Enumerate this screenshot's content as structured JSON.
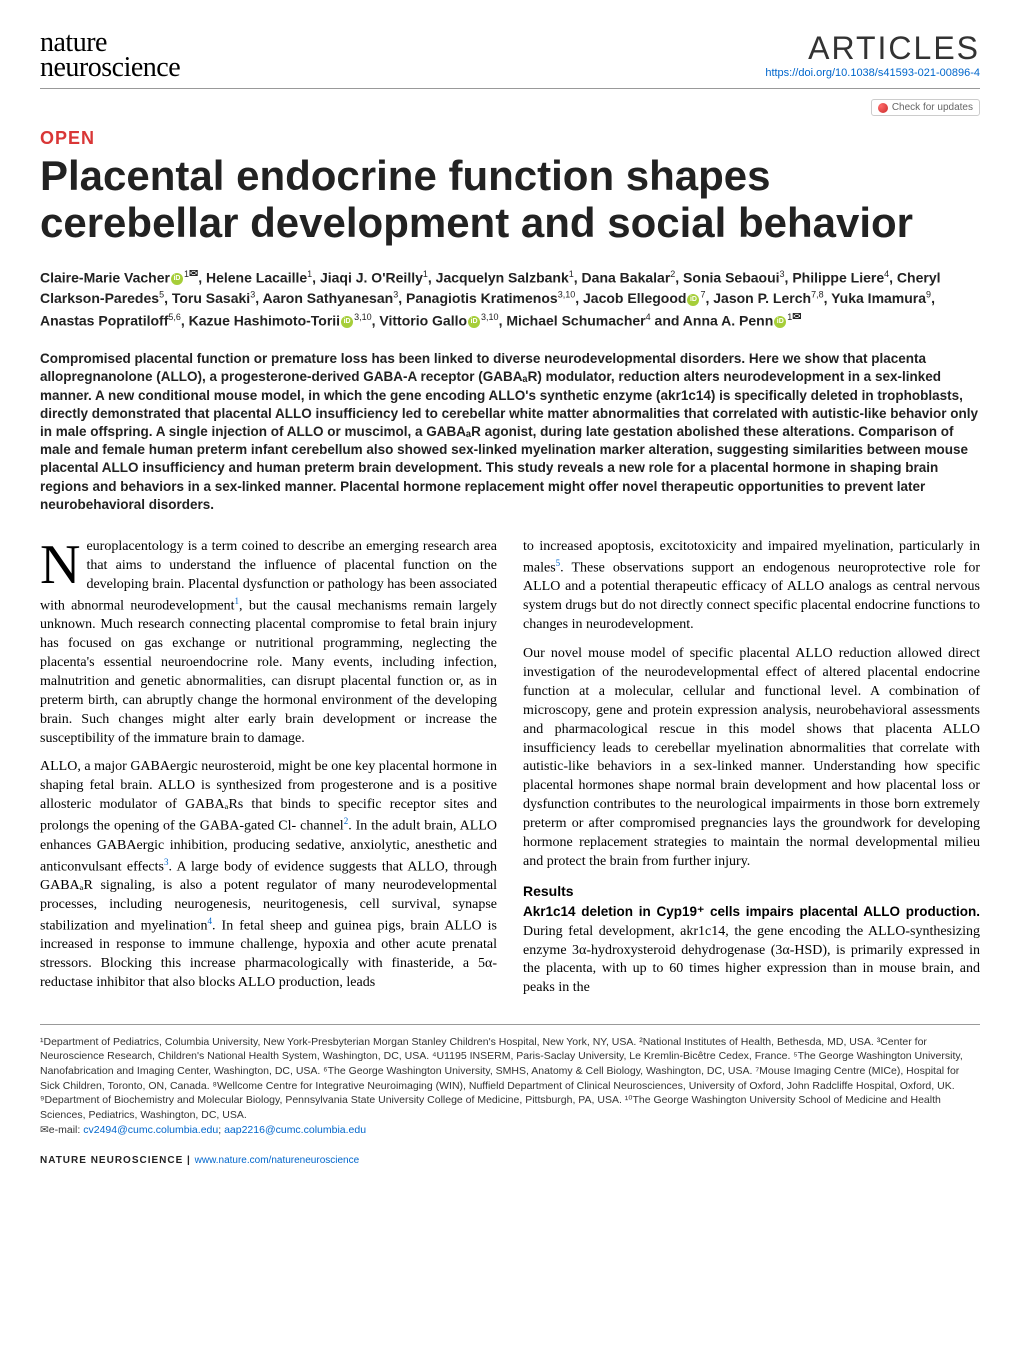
{
  "header": {
    "logo_line1": "nature",
    "logo_line2": "neuroscience",
    "articles_label": "ARTICLES",
    "doi": "https://doi.org/10.1038/s41593-021-00896-4",
    "check_updates": "Check for updates"
  },
  "open_label": "OPEN",
  "title": "Placental endocrine function shapes cerebellar development and social behavior",
  "authors_html": "Claire-Marie Vacher<span class='orcid'></span><sup>1</sup><span class='envelope'>✉</span>, Helene Lacaille<sup>1</sup>, Jiaqi J. O'Reilly<sup>1</sup>, Jacquelyn Salzbank<sup>1</sup>, Dana Bakalar<sup>2</sup>, Sonia Sebaoui<sup>3</sup>, Philippe Liere<sup>4</sup>, Cheryl Clarkson-Paredes<sup>5</sup>, Toru Sasaki<sup>3</sup>, Aaron Sathyanesan<sup>3</sup>, Panagiotis Kratimenos<sup>3,10</sup>, Jacob Ellegood<span class='orcid'></span><sup>7</sup>, Jason P. Lerch<sup>7,8</sup>, Yuka Imamura<sup>9</sup>, Anastas Popratiloff<sup>5,6</sup>, Kazue Hashimoto-Torii<span class='orcid'></span><sup>3,10</sup>, Vittorio Gallo<span class='orcid'></span><sup>3,10</sup>, Michael Schumacher<sup>4</sup> and Anna A. Penn<span class='orcid'></span><sup>1</sup><span class='envelope'>✉</span>",
  "abstract": "Compromised placental function or premature loss has been linked to diverse neurodevelopmental disorders. Here we show that placenta allopregnanolone (ALLO), a progesterone-derived GABA-A receptor (GABAₐR) modulator, reduction alters neurodevelopment in a sex-linked manner. A new conditional mouse model, in which the gene encoding ALLO's synthetic enzyme (akr1c14) is specifically deleted in trophoblasts, directly demonstrated that placental ALLO insufficiency led to cerebellar white matter abnormalities that correlated with autistic-like behavior only in male offspring. A single injection of ALLO or muscimol, a GABAₐR agonist, during late gestation abolished these alterations. Comparison of male and female human preterm infant cerebellum also showed sex-linked myelination marker alteration, suggesting similarities between mouse placental ALLO insufficiency and human preterm brain development. This study reveals a new role for a placental hormone in shaping brain regions and behaviors in a sex-linked manner. Placental hormone replacement might offer novel therapeutic opportunities to prevent later neurobehavioral disorders.",
  "body": {
    "p1_dropcap": "N",
    "p1": "europlacentology is a term coined to describe an emerging research area that aims to understand the influence of placental function on the developing brain. Placental dysfunction or pathology has been associated with abnormal neurodevelopment",
    "p1_ref": "1",
    "p1_tail": ", but the causal mechanisms remain largely unknown. Much research connecting placental compromise to fetal brain injury has focused on gas exchange or nutritional programming, neglecting the placenta's essential neuroendocrine role. Many events, including infection, malnutrition and genetic abnormalities, can disrupt placental function or, as in preterm birth, can abruptly change the hormonal environment of the developing brain. Such changes might alter early brain development or increase the susceptibility of the immature brain to damage.",
    "p2_a": "ALLO, a major GABAergic neurosteroid, might be one key placental hormone in shaping fetal brain. ALLO is synthesized from progesterone and is a positive allosteric modulator of GABAₐRs that binds to specific receptor sites and prolongs the opening of the GABA-gated Cl- channel",
    "p2_ref2": "2",
    "p2_b": ". In the adult brain, ALLO enhances GABAergic inhibition, producing sedative, anxiolytic, anesthetic and anticonvulsant effects",
    "p2_ref3": "3",
    "p2_c": ". A large body of evidence suggests that ALLO, through GABAₐR signaling, is also a potent regulator of many neurodevelopmental processes, including neurogenesis, neuritogenesis, cell survival, synapse stabilization and myelination",
    "p2_ref4": "4",
    "p2_d": ". In fetal sheep and guinea pigs, brain ALLO is increased in response to immune challenge, hypoxia and other acute prenatal stressors. Blocking this increase pharmacologically with finasteride, a 5α-reductase inhibitor that also blocks ALLO production, leads",
    "p3_a": "to increased apoptosis, excitotoxicity and impaired myelination, particularly in males",
    "p3_ref5": "5",
    "p3_b": ". These observations support an endogenous neuroprotective role for ALLO and a potential therapeutic efficacy of ALLO analogs as central nervous system drugs but do not directly connect specific placental endocrine functions to changes in neurodevelopment.",
    "p4": "Our novel mouse model of specific placental ALLO reduction allowed direct investigation of the neurodevelopmental effect of altered placental endocrine function at a molecular, cellular and functional level. A combination of microscopy, gene and protein expression analysis, neurobehavioral assessments and pharmacological rescue in this model shows that placenta ALLO insufficiency leads to cerebellar myelination abnormalities that correlate with autistic-like behaviors in a sex-linked manner. Understanding how specific placental hormones shape normal brain development and how placental loss or dysfunction contributes to the neurological impairments in those born extremely preterm or after compromised pregnancies lays the groundwork for developing hormone replacement strategies to maintain the normal developmental milieu and protect the brain from further injury.",
    "results_head": "Results",
    "sub1_strong": "Akr1c14 deletion in Cyp19⁺ cells impairs placental ALLO production.",
    "sub1_text": " During fetal development, akr1c14, the gene encoding the ALLO-synthesizing enzyme 3α-hydroxysteroid dehydrogenase (3α-HSD), is primarily expressed in the placenta, with up to 60 times higher expression than in mouse brain, and peaks in the"
  },
  "affiliations": "¹Department of Pediatrics, Columbia University, New York-Presbyterian Morgan Stanley Children's Hospital, New York, NY, USA. ²National Institutes of Health, Bethesda, MD, USA. ³Center for Neuroscience Research, Children's National Health System, Washington, DC, USA. ⁴U1195 INSERM, Paris-Saclay University, Le Kremlin-Bicêtre Cedex, France. ⁵The George Washington University, Nanofabrication and Imaging Center, Washington, DC, USA. ⁶The George Washington University, SMHS, Anatomy & Cell Biology, Washington, DC, USA. ⁷Mouse Imaging Centre (MICe), Hospital for Sick Children, Toronto, ON, Canada. ⁸Wellcome Centre for Integrative Neuroimaging (WIN), Nuffield Department of Clinical Neurosciences, University of Oxford, John Radcliffe Hospital, Oxford, UK. ⁹Department of Biochemistry and Molecular Biology, Pennsylvania State University College of Medicine, Pittsburgh, PA, USA. ¹⁰The George Washington University School of Medicine and Health Sciences, Pediatrics, Washington, DC, USA. ",
  "email_label": "✉e-mail: ",
  "email1": "cv2494@cumc.columbia.edu",
  "email2": "aap2216@cumc.columbia.edu",
  "footer": {
    "journal": "NATURE NEUROSCIENCE | ",
    "url": "www.nature.com/natureneuroscience"
  }
}
